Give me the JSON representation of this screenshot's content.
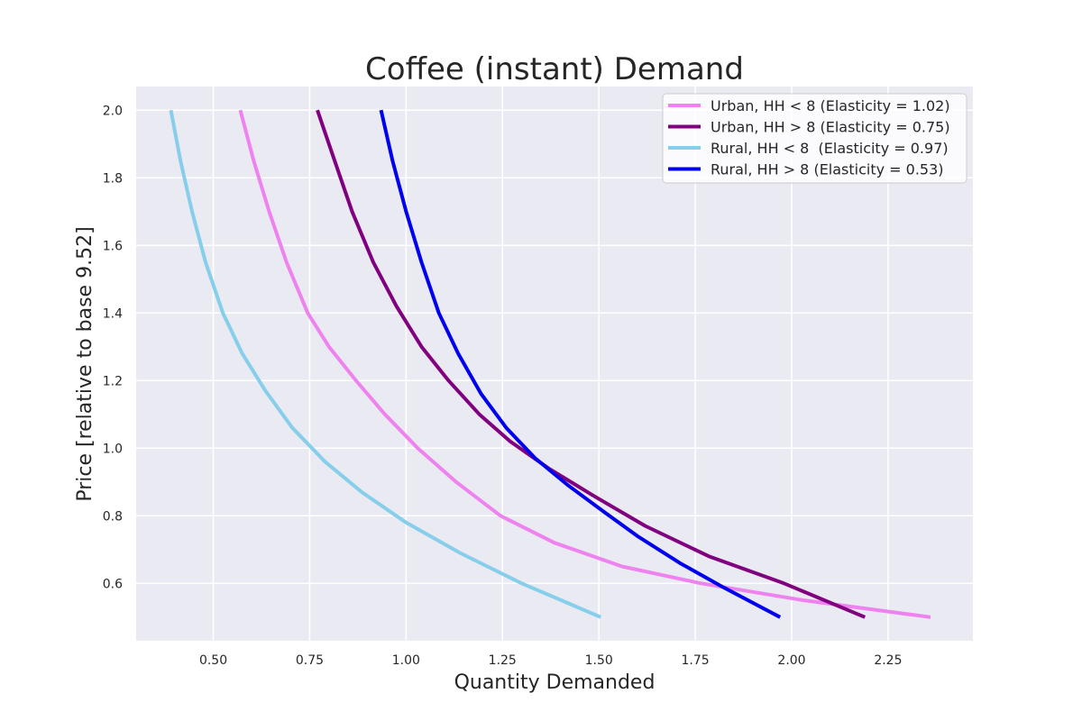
{
  "chart_data": {
    "type": "line",
    "title": "Coffee (instant) Demand",
    "xlabel": "Quantity Demanded",
    "ylabel": "Price [relative to base 9.52]",
    "xlim": [
      0.3,
      2.47
    ],
    "ylim": [
      0.43,
      2.07
    ],
    "xticks": [
      0.5,
      0.75,
      1.0,
      1.25,
      1.5,
      1.75,
      2.0,
      2.25
    ],
    "xtick_labels": [
      "0.50",
      "0.75",
      "1.00",
      "1.25",
      "1.50",
      "1.75",
      "2.00",
      "2.25"
    ],
    "yticks": [
      0.6,
      0.8,
      1.0,
      1.2,
      1.4,
      1.6,
      1.8,
      2.0
    ],
    "ytick_labels": [
      "0.6",
      "0.8",
      "1.0",
      "1.2",
      "1.4",
      "1.6",
      "1.8",
      "2.0"
    ],
    "grid": true,
    "legend_position": "top-right",
    "series": [
      {
        "name": "Urban, HH < 8 (Elasticity = 1.02)",
        "color": "#ee82ee",
        "x": [
          0.57,
          0.605,
          0.645,
          0.69,
          0.745,
          0.8,
          0.87,
          0.945,
          1.03,
          1.13,
          1.245,
          1.385,
          1.56,
          1.765,
          2.03,
          2.36
        ],
        "y": [
          2.0,
          1.85,
          1.7,
          1.55,
          1.4,
          1.3,
          1.2,
          1.1,
          1.0,
          0.9,
          0.8,
          0.72,
          0.65,
          0.6,
          0.55,
          0.5
        ]
      },
      {
        "name": "Urban, HH > 8 (Elasticity = 0.75)",
        "color": "#800080",
        "x": [
          0.77,
          0.815,
          0.86,
          0.915,
          0.975,
          1.04,
          1.11,
          1.19,
          1.27,
          1.37,
          1.485,
          1.62,
          1.785,
          1.98,
          2.19
        ],
        "y": [
          2.0,
          1.85,
          1.7,
          1.55,
          1.42,
          1.3,
          1.2,
          1.1,
          1.02,
          0.94,
          0.86,
          0.77,
          0.68,
          0.6,
          0.5
        ]
      },
      {
        "name": "Rural, HH < 8  (Elasticity = 0.97)",
        "color": "#87ceeb",
        "x": [
          0.39,
          0.415,
          0.445,
          0.48,
          0.525,
          0.575,
          0.635,
          0.705,
          0.79,
          0.885,
          1.0,
          1.14,
          1.3,
          1.505
        ],
        "y": [
          2.0,
          1.85,
          1.7,
          1.55,
          1.4,
          1.28,
          1.17,
          1.06,
          0.96,
          0.87,
          0.78,
          0.69,
          0.6,
          0.5
        ]
      },
      {
        "name": "Rural, HH > 8 (Elasticity = 0.53)",
        "color": "#0000ee",
        "x": [
          0.935,
          0.965,
          1.0,
          1.04,
          1.085,
          1.135,
          1.195,
          1.26,
          1.335,
          1.42,
          1.515,
          1.6,
          1.71,
          1.82,
          1.97
        ],
        "y": [
          2.0,
          1.85,
          1.7,
          1.55,
          1.4,
          1.28,
          1.16,
          1.06,
          0.97,
          0.89,
          0.81,
          0.74,
          0.66,
          0.59,
          0.5
        ]
      }
    ]
  }
}
